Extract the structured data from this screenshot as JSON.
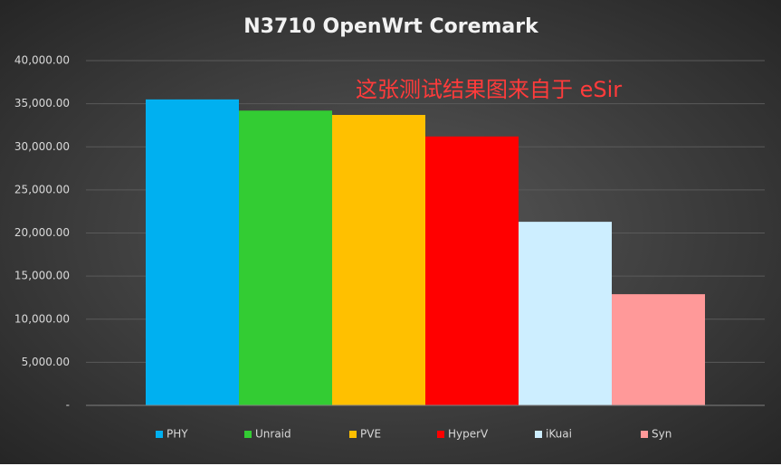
{
  "chart_data": {
    "type": "bar",
    "title": "N3710 OpenWrt Coremark",
    "annotation": "这张测试结果图来自于 eSir",
    "categories": [
      null
    ],
    "series": [
      {
        "name": "PHY",
        "color": "#00b0f0",
        "values": [
          35500
        ]
      },
      {
        "name": "Unraid",
        "color": "#33cc33",
        "values": [
          34200
        ]
      },
      {
        "name": "PVE",
        "color": "#ffc000",
        "values": [
          33700
        ]
      },
      {
        "name": "HyperV",
        "color": "#ff0000",
        "values": [
          31200
        ]
      },
      {
        "name": "iKuai",
        "color": "#cdeeff",
        "values": [
          21300
        ]
      },
      {
        "name": "Syn",
        "color": "#ff9999",
        "values": [
          12900
        ]
      }
    ],
    "ylim": [
      0,
      40000
    ],
    "yticks": [
      {
        "value": 0,
        "label": "-"
      },
      {
        "value": 5000,
        "label": "5,000.00"
      },
      {
        "value": 10000,
        "label": "10,000.00"
      },
      {
        "value": 15000,
        "label": "15,000.00"
      },
      {
        "value": 20000,
        "label": "20,000.00"
      },
      {
        "value": 25000,
        "label": "25,000.00"
      },
      {
        "value": 30000,
        "label": "30,000.00"
      },
      {
        "value": 35000,
        "label": "35,000.00"
      },
      {
        "value": 40000,
        "label": "40,000.00"
      }
    ],
    "grid": true,
    "legend": "bottom"
  }
}
